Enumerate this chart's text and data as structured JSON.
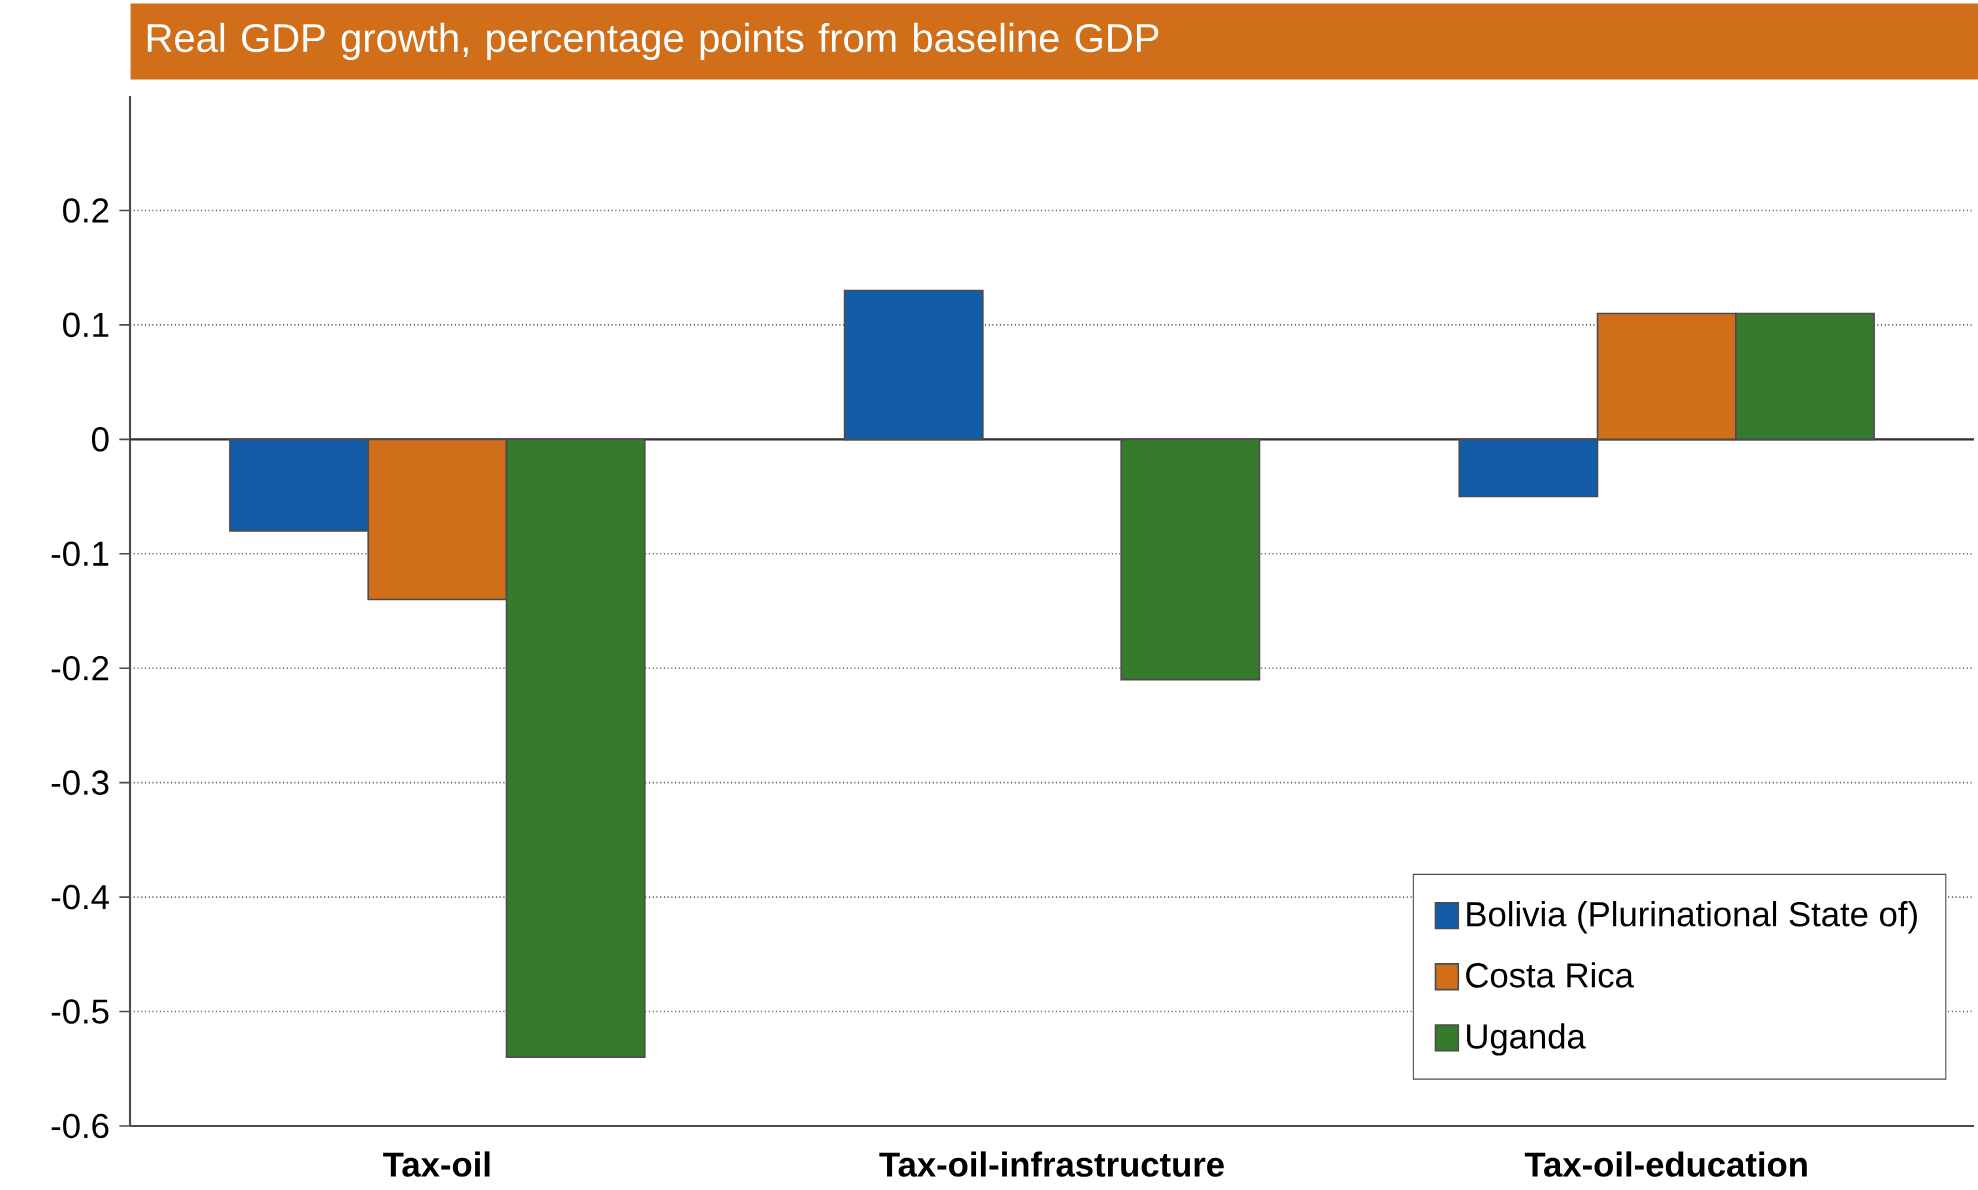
{
  "chart_data": {
    "type": "bar",
    "title": "Real GDP growth, percentage points from baseline GDP",
    "categories": [
      "Tax-oil",
      "Tax-oil-infrastructure",
      "Tax-oil-education"
    ],
    "series": [
      {
        "name": "Bolivia (Plurinational State of)",
        "color": "#135ca8",
        "values": [
          -0.08,
          0.13,
          -0.05
        ]
      },
      {
        "name": "Costa Rica",
        "color": "#d06e19",
        "values": [
          -0.14,
          null,
          0.11
        ]
      },
      {
        "name": "Uganda",
        "color": "#367b2d",
        "values": [
          -0.54,
          -0.21,
          0.11
        ]
      }
    ],
    "ylim": [
      -0.6,
      0.3
    ],
    "yticks": [
      -0.6,
      -0.5,
      -0.4,
      -0.3,
      -0.2,
      -0.1,
      0,
      0.1,
      0.2
    ],
    "grid": "y",
    "legend": "bottom right"
  }
}
